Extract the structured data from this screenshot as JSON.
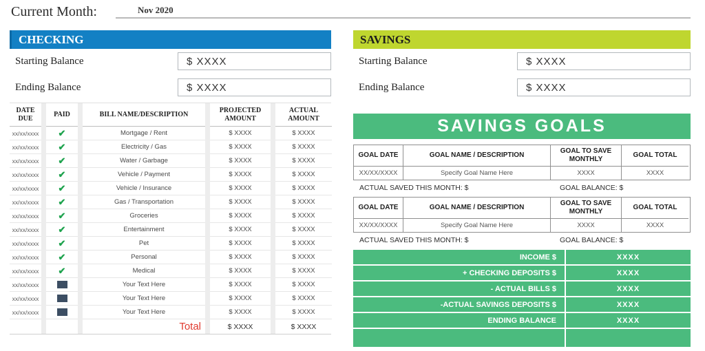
{
  "header": {
    "current_month_label": "Current Month:",
    "current_month_value": "Nov 2020"
  },
  "checking": {
    "title": "CHECKING",
    "starting_balance": {
      "label": "Starting Balance",
      "value": "$  XXXX"
    },
    "ending_balance": {
      "label": "Ending Balance",
      "value": "$  XXXX"
    },
    "table": {
      "headers": [
        "DATE DUE",
        "PAID",
        "BILL NAME/DESCRIPTION",
        "PROJECTED AMOUNT",
        "ACTUAL AMOUNT"
      ],
      "rows": [
        {
          "date": "xx/xx/xxxx",
          "paid": "check",
          "name": "Mortgage / Rent",
          "projected": "$ XXXX",
          "actual": "$ XXXX"
        },
        {
          "date": "xx/xx/xxxx",
          "paid": "check",
          "name": "Electricity / Gas",
          "projected": "$ XXXX",
          "actual": "$ XXXX"
        },
        {
          "date": "xx/xx/xxxx",
          "paid": "check",
          "name": "Water / Garbage",
          "projected": "$ XXXX",
          "actual": "$ XXXX"
        },
        {
          "date": "xx/xx/xxxx",
          "paid": "check",
          "name": "Vehicle / Payment",
          "projected": "$ XXXX",
          "actual": "$ XXXX"
        },
        {
          "date": "xx/xx/xxxx",
          "paid": "check",
          "name": "Vehicle / Insurance",
          "projected": "$ XXXX",
          "actual": "$ XXXX"
        },
        {
          "date": "xx/xx/xxxx",
          "paid": "check",
          "name": "Gas / Transportation",
          "projected": "$ XXXX",
          "actual": "$ XXXX"
        },
        {
          "date": "xx/xx/xxxx",
          "paid": "check",
          "name": "Groceries",
          "projected": "$ XXXX",
          "actual": "$ XXXX"
        },
        {
          "date": "xx/xx/xxxx",
          "paid": "check",
          "name": "Entertainment",
          "projected": "$ XXXX",
          "actual": "$ XXXX"
        },
        {
          "date": "xx/xx/xxxx",
          "paid": "check",
          "name": "Pet",
          "projected": "$ XXXX",
          "actual": "$ XXXX"
        },
        {
          "date": "xx/xx/xxxx",
          "paid": "check",
          "name": "Personal",
          "projected": "$ XXXX",
          "actual": "$ XXXX"
        },
        {
          "date": "xx/xx/xxxx",
          "paid": "check",
          "name": "Medical",
          "projected": "$ XXXX",
          "actual": "$ XXXX"
        },
        {
          "date": "xx/xx/xxxx",
          "paid": "square",
          "name": "Your Text Here",
          "projected": "$ XXXX",
          "actual": "$ XXXX"
        },
        {
          "date": "xx/xx/xxxx",
          "paid": "square",
          "name": "Your Text Here",
          "projected": "$ XXXX",
          "actual": "$ XXXX"
        },
        {
          "date": "xx/xx/xxxx",
          "paid": "square",
          "name": "Your Text Here",
          "projected": "$ XXXX",
          "actual": "$ XXXX"
        }
      ],
      "total": {
        "label": "Total",
        "projected": "$ XXXX",
        "actual": "$ XXXX"
      }
    }
  },
  "savings": {
    "title": "SAVINGS",
    "starting_balance": {
      "label": "Starting Balance",
      "value": "$  XXXX"
    },
    "ending_balance": {
      "label": "Ending Balance",
      "value": "$  XXXX"
    }
  },
  "savings_goals": {
    "banner": "SAVINGS GOALS",
    "headers": [
      "GOAL DATE",
      "GOAL NAME / DESCRIPTION",
      "GOAL TO SAVE MONTHLY",
      "GOAL TOTAL"
    ],
    "goals": [
      {
        "date": "XX/XX/XXXX",
        "name": "Specify Goal Name Here",
        "monthly": "XXXX",
        "total": "XXXX",
        "actual_saved_label": "ACTUAL SAVED THIS MONTH:   $",
        "goal_balance_label": "GOAL BALANCE:   $"
      },
      {
        "date": "XX/XX/XXXX",
        "name": "Specify Goal Name Here",
        "monthly": "XXXX",
        "total": "XXXX",
        "actual_saved_label": "ACTUAL SAVED THIS MONTH:   $",
        "goal_balance_label": "GOAL BALANCE:   $"
      }
    ]
  },
  "summary": {
    "rows": [
      {
        "label": "INCOME $",
        "value": "XXXX"
      },
      {
        "label": "+ CHECKING DEPOSITS  $",
        "value": "XXXX"
      },
      {
        "label": "- ACTUAL BILLS $",
        "value": "XXXX"
      },
      {
        "label": "-ACTUAL SAVINGS DEPOSITS  $",
        "value": "XXXX"
      },
      {
        "label": "ENDING  BALANCE",
        "value": "XXXX"
      },
      {
        "label": "",
        "value": ""
      }
    ]
  },
  "colors": {
    "checking_blue": "#1380c4",
    "savings_yellow_green": "#bfd62f",
    "goals_green": "#4bbb7e",
    "check_green": "#1fa34e",
    "pending_navy": "#3c4e63",
    "total_red": "#e03a2f"
  }
}
